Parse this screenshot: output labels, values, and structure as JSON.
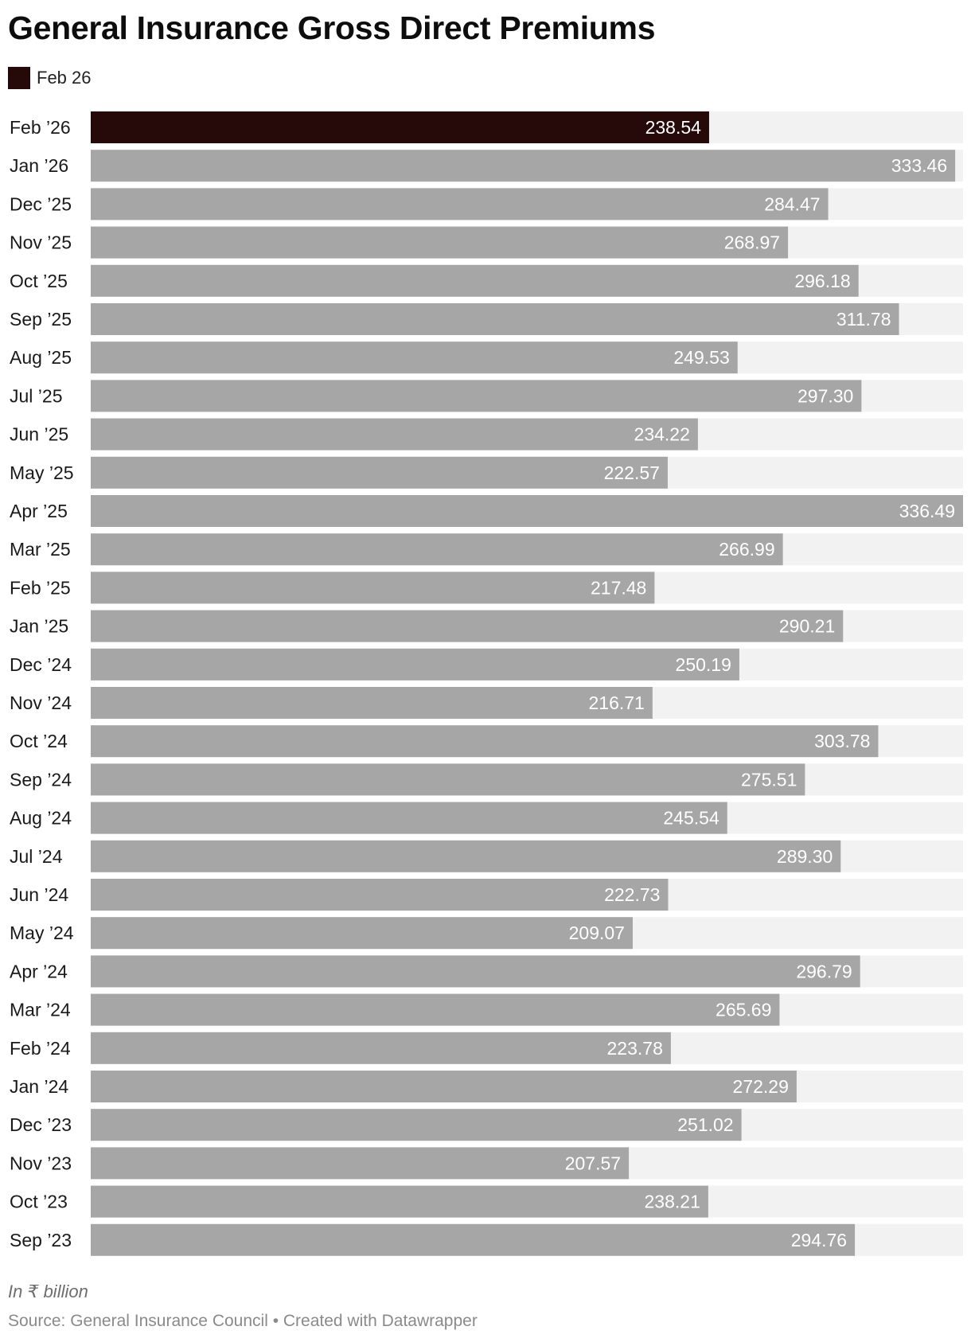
{
  "header": {
    "title": "General Insurance Gross Direct Premiums"
  },
  "legend": {
    "label": "Feb 26",
    "color": "#260a0a"
  },
  "footer": {
    "notes": "In ₹ billion",
    "source_prefix": "Source: ",
    "source_name": "General Insurance Council",
    "separator": " • ",
    "credit": "Created with Datawrapper"
  },
  "colors": {
    "highlight": "#260a0a",
    "bar": "#a6a6a6",
    "track": "#f2f2f2"
  },
  "chart_data": {
    "type": "bar",
    "orientation": "horizontal",
    "title": "General Insurance Gross Direct Premiums",
    "unit": "In ₹ billion",
    "highlight_category": "Feb ’26",
    "categories": [
      "Feb ’26",
      "Jan ’26",
      "Dec ’25",
      "Nov ’25",
      "Oct ’25",
      "Sep ’25",
      "Aug ’25",
      "Jul ’25",
      "Jun ’25",
      "May ’25",
      "Apr ’25",
      "Mar ’25",
      "Feb ’25",
      "Jan ’25",
      "Dec ’24",
      "Nov ’24",
      "Oct ’24",
      "Sep ’24",
      "Aug ’24",
      "Jul ’24",
      "Jun ’24",
      "May ’24",
      "Apr ’24",
      "Mar ’24",
      "Feb ’24",
      "Jan ’24",
      "Dec ’23",
      "Nov ’23",
      "Oct ’23",
      "Sep ’23"
    ],
    "values": [
      238.54,
      333.46,
      284.47,
      268.97,
      296.18,
      311.78,
      249.53,
      297.3,
      234.22,
      222.57,
      336.49,
      266.99,
      217.48,
      290.21,
      250.19,
      216.71,
      303.78,
      275.51,
      245.54,
      289.3,
      222.73,
      209.07,
      296.79,
      265.69,
      223.78,
      272.29,
      251.02,
      207.57,
      238.21,
      294.76
    ],
    "value_labels": [
      "238.54",
      "333.46",
      "284.47",
      "268.97",
      "296.18",
      "311.78",
      "249.53",
      "297.30",
      "234.22",
      "222.57",
      "336.49",
      "266.99",
      "217.48",
      "290.21",
      "250.19",
      "216.71",
      "303.78",
      "275.51",
      "245.54",
      "289.30",
      "222.73",
      "209.07",
      "296.79",
      "265.69",
      "223.78",
      "272.29",
      "251.02",
      "207.57",
      "238.21",
      "294.76"
    ],
    "xlim": [
      0,
      336.49
    ],
    "grid": false
  }
}
